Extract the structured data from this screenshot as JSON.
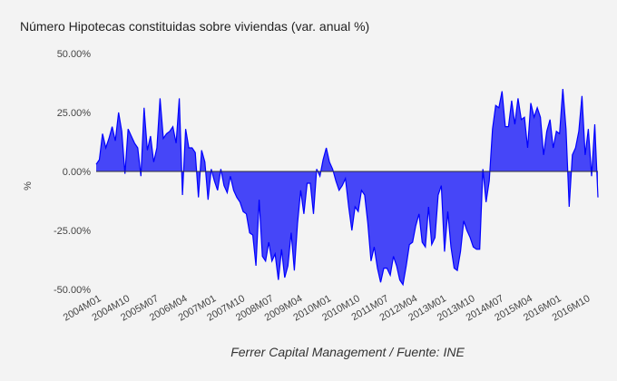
{
  "chart_data": {
    "type": "area",
    "title": "Número Hipotecas constituidas sobre viviendas (var. anual %)",
    "xlabel": "",
    "ylabel": "%",
    "x_start": "2004M01",
    "x_end": "2017M02",
    "frequency": "monthly",
    "ylim": [
      -50,
      50
    ],
    "yticks": [
      50,
      25,
      0,
      -25,
      -50
    ],
    "ytick_labels": [
      "50.00%",
      "25.00%",
      "0.00%",
      "-25.00%",
      "-50.00%"
    ],
    "xtick_labels": [
      "2004M01",
      "2004M10",
      "2005M07",
      "2006M04",
      "2007M01",
      "2007M10",
      "2008M07",
      "2009M04",
      "2010M01",
      "2010M10",
      "2011M07",
      "2012M04",
      "2013M01",
      "2013M10",
      "2014M07",
      "2015M04",
      "2016M01",
      "2016M10"
    ],
    "xtick_every_months": 9,
    "grid": false,
    "series": [
      {
        "name": "Var. anual %",
        "color": "#0000ff",
        "fill": "#4646f8",
        "values": [
          3,
          5,
          16,
          10,
          14,
          19,
          13,
          25,
          17,
          -1,
          18,
          15,
          12,
          10,
          -2,
          27,
          9,
          15,
          4,
          10,
          31,
          14,
          16,
          17,
          19,
          12,
          31,
          -10,
          18,
          10,
          10,
          8,
          -11,
          9,
          4,
          -12,
          1,
          -4,
          -8,
          1,
          -6,
          -9,
          -2,
          -8,
          -11,
          -13,
          -17,
          -18,
          -26,
          -27,
          -40,
          -12,
          -36,
          -38,
          -30,
          -38,
          -35,
          -46,
          -33,
          -45,
          -40,
          -26,
          -42,
          -22,
          -8,
          -18,
          -5,
          -5,
          -18,
          1,
          -2,
          5,
          10,
          4,
          1,
          -4,
          -8,
          -6,
          -3,
          -15,
          -25,
          -15,
          -17,
          -8,
          -10,
          -22,
          -38,
          -32,
          -41,
          -47,
          -41,
          -41,
          -44,
          -36,
          -40,
          -46,
          -48,
          -40,
          -31,
          -30,
          -23,
          -18,
          -30,
          -32,
          -15,
          -31,
          -28,
          -10,
          -6,
          -34,
          -17,
          -32,
          -41,
          -42,
          -34,
          -21,
          -25,
          -28,
          -32,
          -33,
          -33,
          1,
          -13,
          -4,
          18,
          28,
          27,
          34,
          19,
          19,
          30,
          20,
          31,
          22,
          23,
          10,
          29,
          23,
          27,
          23,
          7,
          17,
          22,
          10,
          17,
          16,
          35,
          18,
          -15,
          7,
          10,
          17,
          32,
          7,
          18,
          -2,
          20,
          -11
        ]
      }
    ]
  },
  "footer": "Ferrer Capital Management / Fuente: INE"
}
